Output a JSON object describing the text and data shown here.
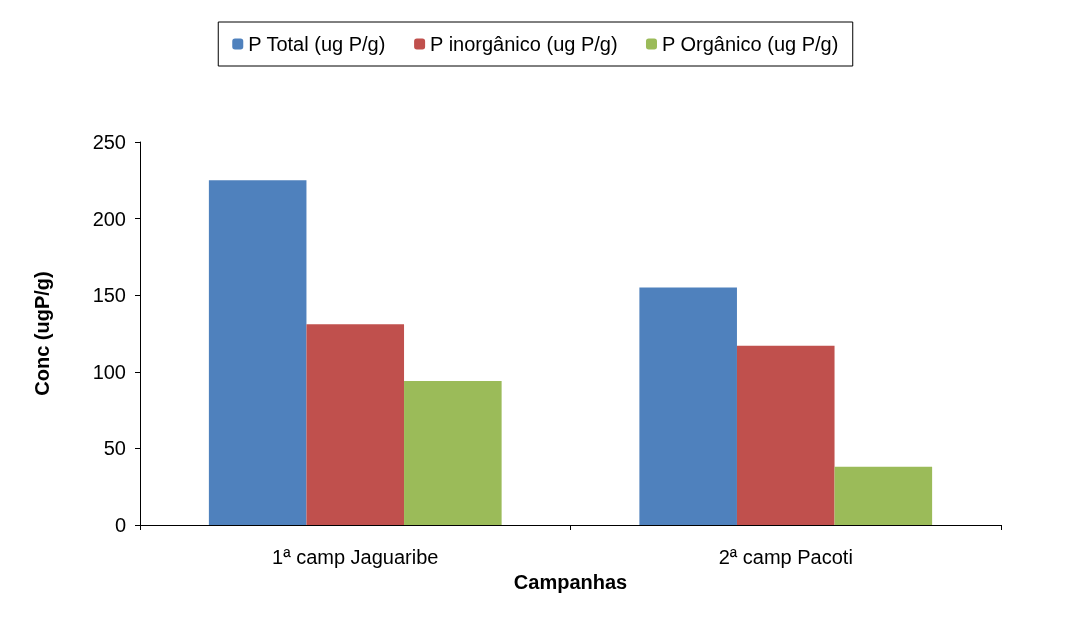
{
  "chart_data": {
    "type": "bar",
    "xlabel": "Campanhas",
    "ylabel": "Conc (ugP/g)",
    "categories": [
      "1ª camp Jaguaribe",
      "2ª camp Pacoti"
    ],
    "series": [
      {
        "name": "P Total (ug P/g)",
        "color": "#4f81bd",
        "values": [
          225,
          155
        ]
      },
      {
        "name": "P inorgânico (ug P/g)",
        "color": "#c0504d",
        "values": [
          131,
          117
        ]
      },
      {
        "name": "P Orgânico (ug P/g)",
        "color": "#9bbb59",
        "values": [
          94,
          38
        ]
      }
    ],
    "ylim": [
      0,
      250
    ],
    "yticks": [
      0,
      50,
      100,
      150,
      200,
      250
    ],
    "grid": false,
    "legend": "top"
  }
}
